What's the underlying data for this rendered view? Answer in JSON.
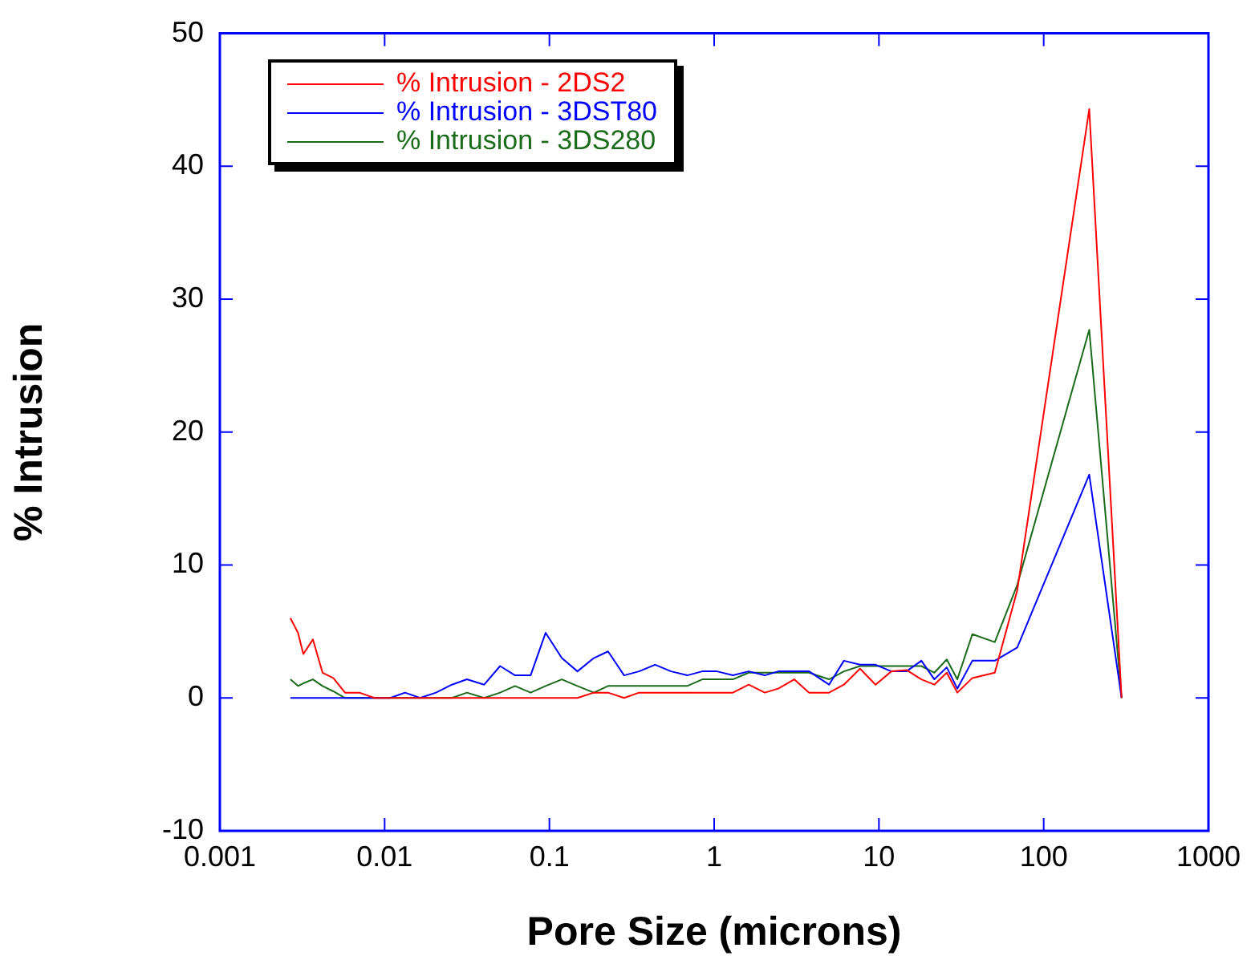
{
  "chart_data": {
    "type": "line",
    "xlabel": "Pore Size (microns)",
    "ylabel": "% Intrusion",
    "x": [
      0.00268,
      0.00298,
      0.00321,
      0.00367,
      0.0042,
      0.00488,
      0.00575,
      0.00703,
      0.00866,
      0.0108,
      0.0133,
      0.0164,
      0.0205,
      0.0256,
      0.0316,
      0.0402,
      0.0502,
      0.0619,
      0.0769,
      0.0948,
      0.119,
      0.148,
      0.186,
      0.227,
      0.284,
      0.35,
      0.438,
      0.548,
      0.686,
      0.847,
      1.04,
      1.3,
      1.62,
      2.03,
      2.45,
      3.06,
      3.77,
      4.98,
      6.13,
      7.68,
      9.54,
      11.9,
      14.7,
      18.1,
      21.7,
      25.8,
      29.9,
      36.9,
      50.5,
      69.1,
      189,
      297
    ],
    "series": [
      {
        "name": "% Intrusion - 2DS2",
        "color": "#ff0000",
        "values": [
          6.0,
          4.9,
          3.3,
          4.4,
          1.9,
          1.5,
          0.4,
          0.4,
          0,
          0,
          0,
          0,
          0,
          0,
          0,
          0,
          0,
          0,
          0,
          0,
          0,
          0,
          0.4,
          0.4,
          0,
          0.4,
          0.4,
          0.4,
          0.4,
          0.4,
          0.4,
          0.4,
          1.0,
          0.4,
          0.7,
          1.4,
          0.4,
          0.4,
          1.0,
          2.2,
          1.0,
          2.0,
          2.1,
          1.4,
          1.0,
          1.9,
          0.4,
          1.5,
          1.9,
          8.1,
          44.3,
          0
        ]
      },
      {
        "name": "% Intrusion - 3DST80",
        "color": "#0000ff",
        "values": [
          0,
          0,
          0,
          0,
          0,
          0,
          0,
          0,
          0,
          0,
          0.4,
          0,
          0.4,
          1.0,
          1.4,
          1.0,
          2.4,
          1.7,
          1.7,
          4.9,
          3.0,
          2.0,
          3.0,
          3.5,
          1.7,
          2.0,
          2.5,
          2.0,
          1.7,
          2.0,
          2.0,
          1.7,
          2.0,
          1.7,
          2.0,
          2.0,
          2.0,
          1.0,
          2.8,
          2.5,
          2.5,
          2.0,
          2.0,
          2.8,
          1.4,
          2.3,
          0.7,
          2.8,
          2.8,
          3.8,
          16.8,
          0
        ]
      },
      {
        "name": "% Intrusion - 3DS280",
        "color": "#1a6b1a",
        "values": [
          1.4,
          0.9,
          1.1,
          1.4,
          0.9,
          0.5,
          0,
          0,
          0,
          0,
          0,
          0,
          0,
          0,
          0.4,
          0,
          0.4,
          0.9,
          0.4,
          0.9,
          1.4,
          0.9,
          0.4,
          0.9,
          0.9,
          0.9,
          0.9,
          0.9,
          0.9,
          1.4,
          1.4,
          1.4,
          1.9,
          1.9,
          1.9,
          1.9,
          1.9,
          1.4,
          2.0,
          2.4,
          2.4,
          2.4,
          2.4,
          2.4,
          1.9,
          2.9,
          1.4,
          4.8,
          4.2,
          8.5,
          27.7,
          0
        ]
      }
    ],
    "log": "x",
    "xlim": [
      0.001,
      1000
    ],
    "xticks": [
      0.001,
      0.01,
      0.1,
      1,
      10,
      100,
      1000
    ],
    "ylim": [
      -10,
      50
    ],
    "yticks": [
      -10,
      0,
      10,
      20,
      30,
      40,
      50
    ],
    "grid": false,
    "legend": "top left",
    "marker": "none",
    "line_style": "solid"
  }
}
